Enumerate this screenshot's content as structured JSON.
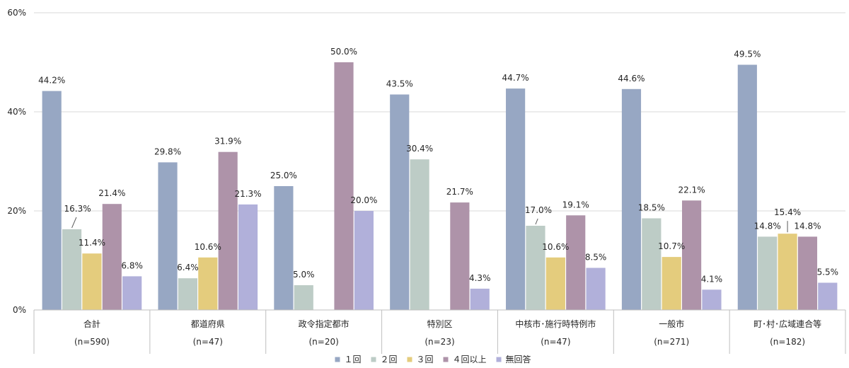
{
  "chart_data": {
    "type": "bar",
    "categories": [
      "合計",
      "都道府県",
      "政令指定都市",
      "特別区",
      "中核市･施行時特例市",
      "一般市",
      "町･村･広域連合等"
    ],
    "sample_sizes": [
      "(n=590)",
      "(n=47)",
      "(n=20)",
      "(n=23)",
      "(n=47)",
      "(n=271)",
      "(n=182)"
    ],
    "series": [
      {
        "name": "１回",
        "color": "#97a7c3",
        "values": [
          44.2,
          29.8,
          25.0,
          43.5,
          44.7,
          44.6,
          49.5
        ],
        "labels": [
          "44.2%",
          "29.8%",
          "25.0%",
          "43.5%",
          "44.7%",
          "44.6%",
          "49.5%"
        ]
      },
      {
        "name": "２回",
        "color": "#bdccc6",
        "values": [
          16.3,
          6.4,
          5.0,
          30.4,
          17.0,
          18.5,
          14.8
        ],
        "labels": [
          "16.3%",
          "6.4%",
          "5.0%",
          "30.4%",
          "17.0%",
          "18.5%",
          "14.8%"
        ]
      },
      {
        "name": "３回",
        "color": "#e4cc7d",
        "values": [
          11.4,
          10.6,
          null,
          null,
          10.6,
          10.7,
          15.4
        ],
        "labels": [
          "11.4%",
          "10.6%",
          null,
          null,
          "10.6%",
          "10.7%",
          "15.4%"
        ]
      },
      {
        "name": "４回以上",
        "color": "#ae93a9",
        "values": [
          21.4,
          31.9,
          50.0,
          21.7,
          19.1,
          22.1,
          14.8
        ],
        "labels": [
          "21.4%",
          "31.9%",
          "50.0%",
          "21.7%",
          "19.1%",
          "22.1%",
          "14.8%"
        ]
      },
      {
        "name": "無回答",
        "color": "#b1b0da",
        "values": [
          6.8,
          21.3,
          20.0,
          4.3,
          8.5,
          4.1,
          5.5
        ],
        "labels": [
          "6.8%",
          "21.3%",
          "20.0%",
          "4.3%",
          "8.5%",
          "4.1%",
          "5.5%"
        ]
      }
    ],
    "yticks": [
      0,
      20,
      40,
      60
    ],
    "ytick_labels": [
      "0%",
      "20%",
      "40%",
      "60%"
    ],
    "ylim": [
      0,
      60
    ],
    "grid": true,
    "legend": "bottom"
  }
}
